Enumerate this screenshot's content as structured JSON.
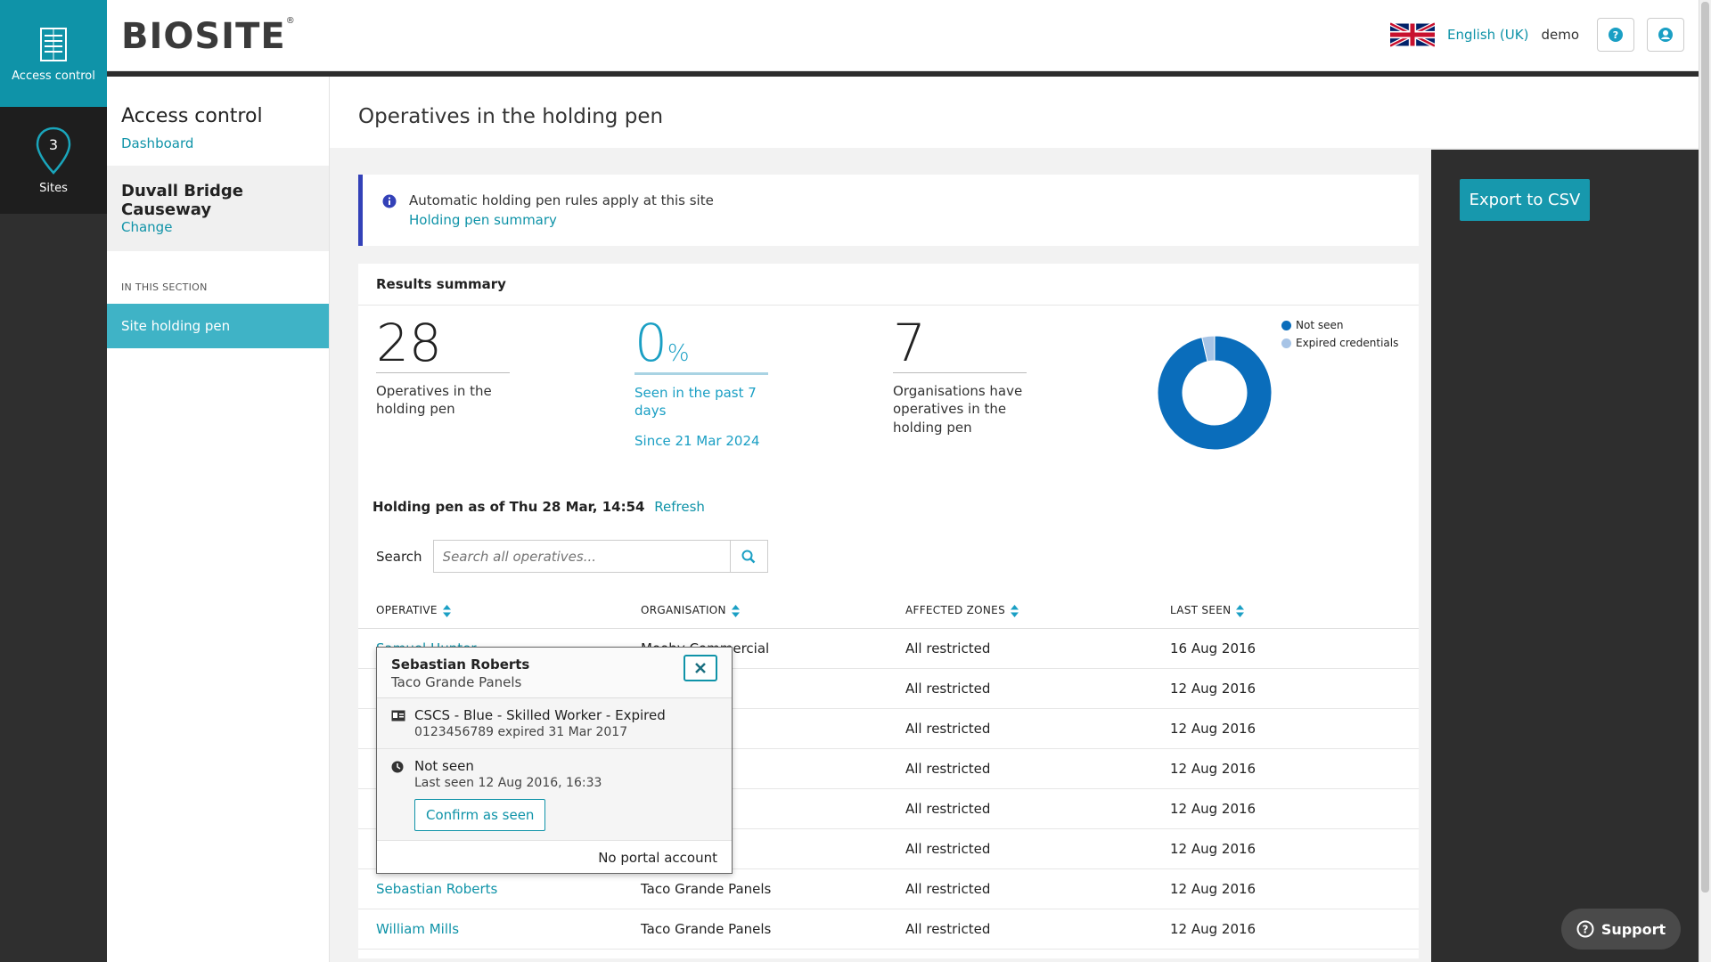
{
  "rail": {
    "access_label": "Access control",
    "sites_label": "Sites",
    "sites_count": "3"
  },
  "header": {
    "logo": "BIOSITE",
    "language": "English (UK)",
    "user": "demo"
  },
  "sidebar": {
    "section_title": "Access control",
    "dashboard_link": "Dashboard",
    "site_name": "Duvall Bridge Causeway",
    "change_link": "Change",
    "in_section": "IN THIS SECTION",
    "active_item": "Site holding pen"
  },
  "main": {
    "title": "Operatives in the holding pen",
    "export_label": "Export to CSV",
    "info_text": "Automatic holding pen rules apply at this site",
    "info_link": "Holding pen summary",
    "results_title": "Results summary",
    "stat1": {
      "value": "28",
      "desc": "Operatives in the holding pen"
    },
    "stat2": {
      "value": "0",
      "unit": "%",
      "desc": "Seen in the past 7 days",
      "since": "Since 21 Mar 2024"
    },
    "stat3": {
      "value": "7",
      "desc": "Organisations have operatives in the holding pen"
    },
    "legend": [
      {
        "label": "Not seen",
        "color": "#0a6dbb"
      },
      {
        "label": "Expired credentials",
        "color": "#a7c4e6"
      }
    ],
    "as_of": "Holding pen as of Thu 28 Mar, 14:54",
    "refresh": "Refresh",
    "search_label": "Search",
    "search_placeholder": "Search all operatives..."
  },
  "chart_data": {
    "type": "pie",
    "categories": [
      "Not seen",
      "Expired credentials"
    ],
    "values": [
      27,
      1
    ]
  },
  "table": {
    "headers": [
      "OPERATIVE",
      "ORGANISATION",
      "AFFECTED ZONES",
      "LAST SEEN"
    ],
    "rows": [
      [
        "Samuel Hunter",
        "Mooby Commercial",
        "All restricted",
        "16 Aug 2016"
      ],
      [
        "",
        "nels",
        "All restricted",
        "12 Aug 2016"
      ],
      [
        "",
        "nels",
        "All restricted",
        "12 Aug 2016"
      ],
      [
        "",
        "nels",
        "All restricted",
        "12 Aug 2016"
      ],
      [
        "",
        "nels",
        "All restricted",
        "12 Aug 2016"
      ],
      [
        "",
        "nels",
        "All restricted",
        "12 Aug 2016"
      ],
      [
        "Sebastian Roberts",
        "Taco Grande Panels",
        "All restricted",
        "12 Aug 2016"
      ],
      [
        "William Mills",
        "Taco Grande Panels",
        "All restricted",
        "12 Aug 2016"
      ]
    ]
  },
  "popup": {
    "name": "Sebastian Roberts",
    "org": "Taco Grande Panels",
    "card_title": "CSCS - Blue - Skilled Worker - Expired",
    "card_sub": "0123456789 expired 31 Mar 2017",
    "status": "Not seen",
    "last_seen": "Last seen 12 Aug 2016, 16:33",
    "confirm": "Confirm as seen",
    "footer": "No portal account"
  },
  "support_label": "Support"
}
